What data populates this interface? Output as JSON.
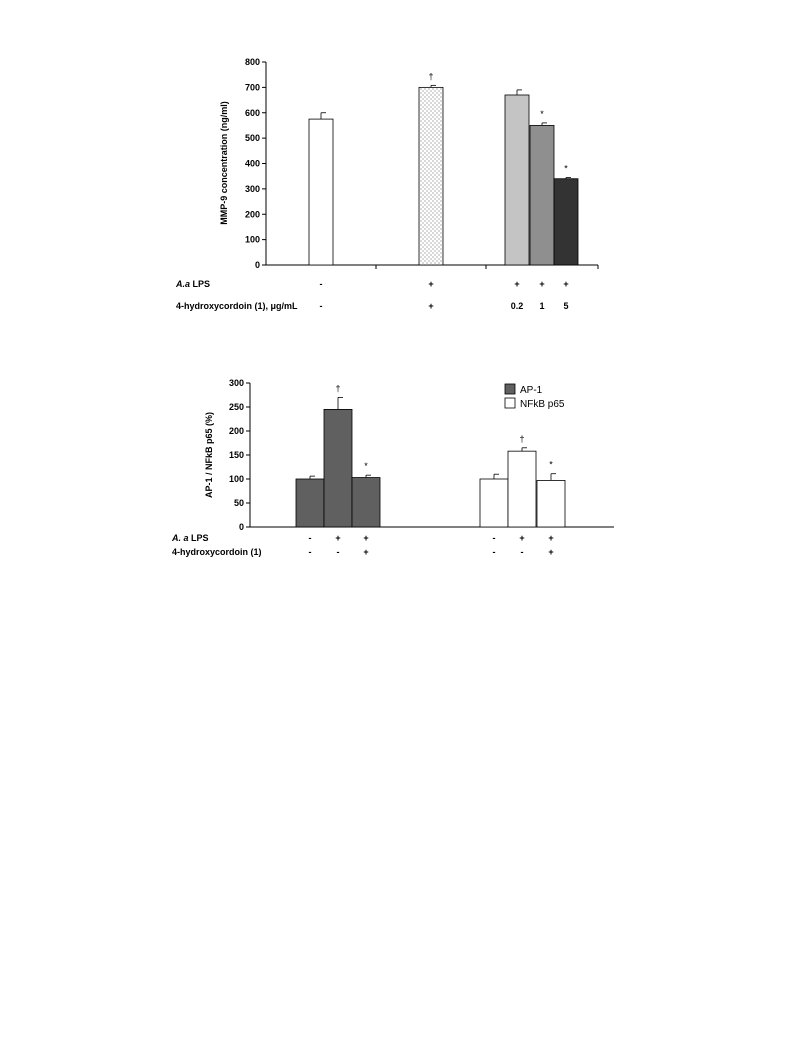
{
  "chart_data": [
    {
      "type": "bar",
      "ylabel": "MMP-9 concentration (ng/ml)",
      "ylim": [
        0,
        800
      ],
      "yticks": [
        0,
        100,
        200,
        300,
        400,
        500,
        600,
        700,
        800
      ],
      "bars": [
        {
          "value": 575,
          "error": 25,
          "fill": "white",
          "mark": ""
        },
        {
          "value": 700,
          "error": 8,
          "fill": "dotted",
          "mark": "†"
        },
        {
          "value": 670,
          "error": 20,
          "fill": "#c4c4c4",
          "mark": ""
        },
        {
          "value": 550,
          "error": 10,
          "fill": "#8f8f8f",
          "mark": "*"
        },
        {
          "value": 340,
          "error": 5,
          "fill": "#333333",
          "mark": "*"
        }
      ],
      "condition_rows": [
        {
          "label": "A.a LPS",
          "label_italic": "A.a",
          "label_rest": " LPS",
          "values": [
            "-",
            "+",
            "+",
            "+",
            "+"
          ]
        },
        {
          "label": "4-hydroxycordoin (1), μg/mL",
          "values": [
            "-",
            "+",
            "0.2",
            "1",
            "5"
          ]
        }
      ]
    },
    {
      "type": "bar",
      "ylabel": "AP-1 / NFkB p65 (%)",
      "ylim": [
        0,
        300
      ],
      "yticks": [
        0,
        50,
        100,
        150,
        200,
        250,
        300
      ],
      "series": [
        {
          "name": "AP-1",
          "color": "#606060",
          "values": [
            100,
            245,
            103
          ],
          "errors": [
            6,
            25,
            5
          ],
          "marks": [
            "",
            "†",
            "*"
          ]
        },
        {
          "name": "NFkB p65",
          "color": "#ffffff",
          "values": [
            100,
            158,
            97
          ],
          "errors": [
            10,
            7,
            14
          ],
          "marks": [
            "",
            "†",
            "*"
          ]
        }
      ],
      "legend": "top-right",
      "condition_rows": [
        {
          "label": "A. a LPS",
          "label_italic": "A. a",
          "label_rest": "  LPS",
          "values": [
            "-",
            "+",
            "+",
            "-",
            "+",
            "+"
          ]
        },
        {
          "label": "4-hydroxycordoin (1)",
          "values": [
            "-",
            "-",
            "+",
            "-",
            "-",
            "+"
          ]
        }
      ]
    }
  ]
}
